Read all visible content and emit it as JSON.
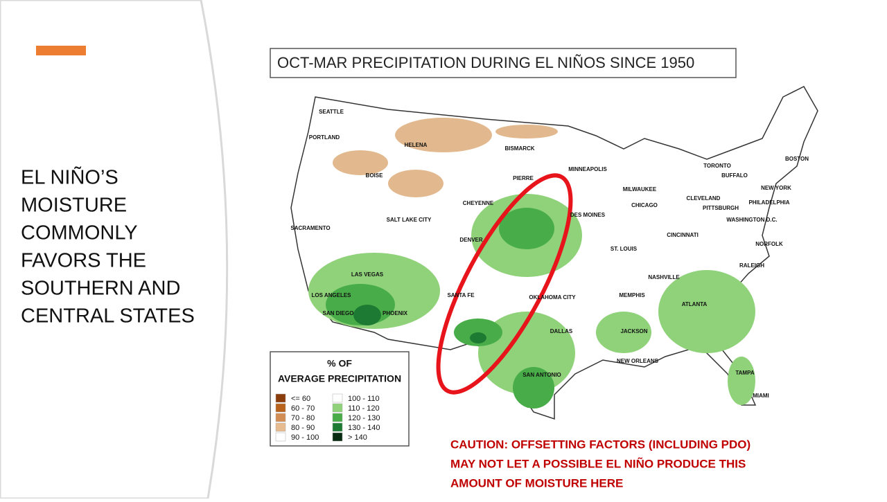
{
  "slide": {
    "heading_lines": [
      "EL NIÑO’S",
      "MOISTURE",
      "COMMONLY",
      "FAVORS THE",
      "SOUTHERN AND",
      "CENTRAL STATES"
    ],
    "map_title": "OCT-MAR PRECIPITATION DURING EL NIÑOS SINCE 1950",
    "cities": [
      "SEATTLE",
      "PORTLAND",
      "HELENA",
      "BISMARCK",
      "BOISE",
      "PIERRE",
      "MINNEAPOLIS",
      "TORONTO",
      "BUFFALO",
      "BOSTON",
      "MILWAUKEE",
      "NEW YORK",
      "CHICAGO",
      "CLEVELAND",
      "PITTSBURGH",
      "PHILADELPHIA",
      "SACRAMENTO",
      "SALT LAKE CITY",
      "CHEYENNE",
      "DES MOINES",
      "WASHINGTON D.C.",
      "CINCINNATI",
      "DENVER",
      "ST. LOUIS",
      "NORFOLK",
      "RALEIGH",
      "LAS VEGAS",
      "NASHVILLE",
      "LOS ANGELES",
      "SANTA FE",
      "OKLAHOMA CITY",
      "MEMPHIS",
      "ATLANTA",
      "SAN DIEGO",
      "PHOENIX",
      "DALLAS",
      "JACKSON",
      "NEW ORLEANS",
      "SAN ANTONIO",
      "TAMPA",
      "MIAMI"
    ],
    "legend": {
      "title_lines": [
        "% OF",
        "AVERAGE PRECIPITATION"
      ],
      "items": [
        {
          "label": "<= 60",
          "color": "#8c3d0c"
        },
        {
          "label": "60 - 70",
          "color": "#b8621b"
        },
        {
          "label": "70 - 80",
          "color": "#d28d55"
        },
        {
          "label": "80 - 90",
          "color": "#e6bb8f"
        },
        {
          "label": "90 - 100",
          "color": "#ffffff"
        },
        {
          "label": "100 - 110",
          "color": "#ffffff"
        },
        {
          "label": "110 - 120",
          "color": "#8fd27a"
        },
        {
          "label": "120 - 130",
          "color": "#48ad48"
        },
        {
          "label": "130 - 140",
          "color": "#1d7a32"
        },
        {
          "label": "> 140",
          "color": "#062b10"
        }
      ]
    },
    "caution_lines": [
      "CAUTION: OFFSETTING FACTORS (INCLUDING PDO)",
      "MAY NOT LET A POSSIBLE EL NIÑO PRODUCE THIS",
      "AMOUNT OF MOISTURE HERE"
    ]
  }
}
